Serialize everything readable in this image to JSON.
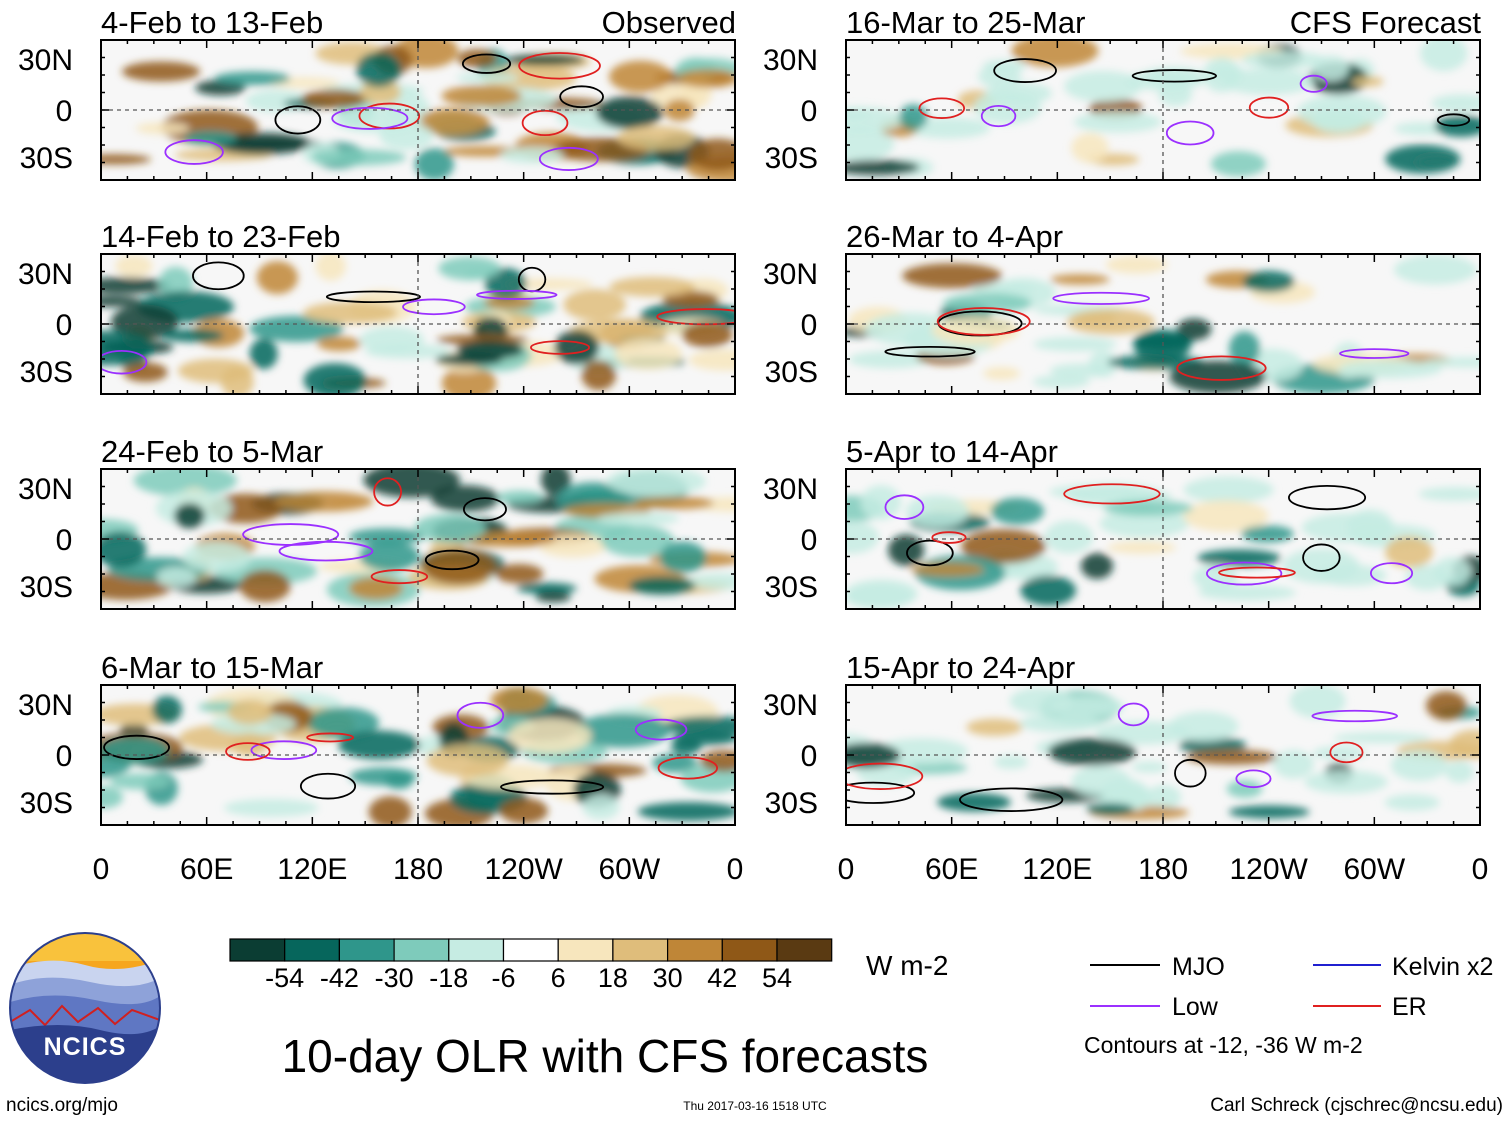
{
  "chart_data": {
    "type": "heatmap",
    "title": "10-day OLR with CFS forecasts",
    "variable": "OLR anomaly",
    "units": "W m-2",
    "x_ticks": [
      "0",
      "60E",
      "120E",
      "180",
      "120W",
      "60W",
      "0"
    ],
    "y_ticks": [
      "30N",
      "0",
      "30S"
    ],
    "xlim": [
      0,
      360
    ],
    "ylim": [
      -40,
      40
    ],
    "columns": [
      {
        "header": "Observed",
        "panels": [
          {
            "title": "4-Feb to 13-Feb"
          },
          {
            "title": "14-Feb to 23-Feb"
          },
          {
            "title": "24-Feb to 5-Mar"
          },
          {
            "title": "6-Mar to 15-Mar"
          }
        ]
      },
      {
        "header": "CFS Forecast",
        "panels": [
          {
            "title": "16-Mar to 25-Mar"
          },
          {
            "title": "26-Mar to 4-Apr"
          },
          {
            "title": "5-Apr to 14-Apr"
          },
          {
            "title": "15-Apr to 24-Apr"
          }
        ]
      }
    ],
    "colorbar": {
      "labels": [
        "-54",
        "-42",
        "-30",
        "-18",
        "-6",
        "6",
        "18",
        "30",
        "42",
        "54"
      ],
      "colors": [
        "#0b3d33",
        "#06665c",
        "#2f968b",
        "#7ecbbb",
        "#c6ece3",
        "#ffffff",
        "#f7e6bd",
        "#dfbd7b",
        "#bf8637",
        "#8f5817",
        "#5a3a12"
      ],
      "units_label": "W m-2"
    },
    "legend": {
      "items": [
        {
          "label": "MJO",
          "color": "#000000"
        },
        {
          "label": "Kelvin x2",
          "color": "#2020d0"
        },
        {
          "label": "Low",
          "color": "#9b30ff"
        },
        {
          "label": "ER",
          "color": "#e02020"
        }
      ],
      "note": "Contours at -12, -36 W m-2"
    },
    "logo_text": "NCICS",
    "website": "ncics.org/mjo",
    "timestamp": "Thu 2017-03-16 1518 UTC",
    "author": "Carl Schreck (cjschrec@ncsu.edu)"
  }
}
